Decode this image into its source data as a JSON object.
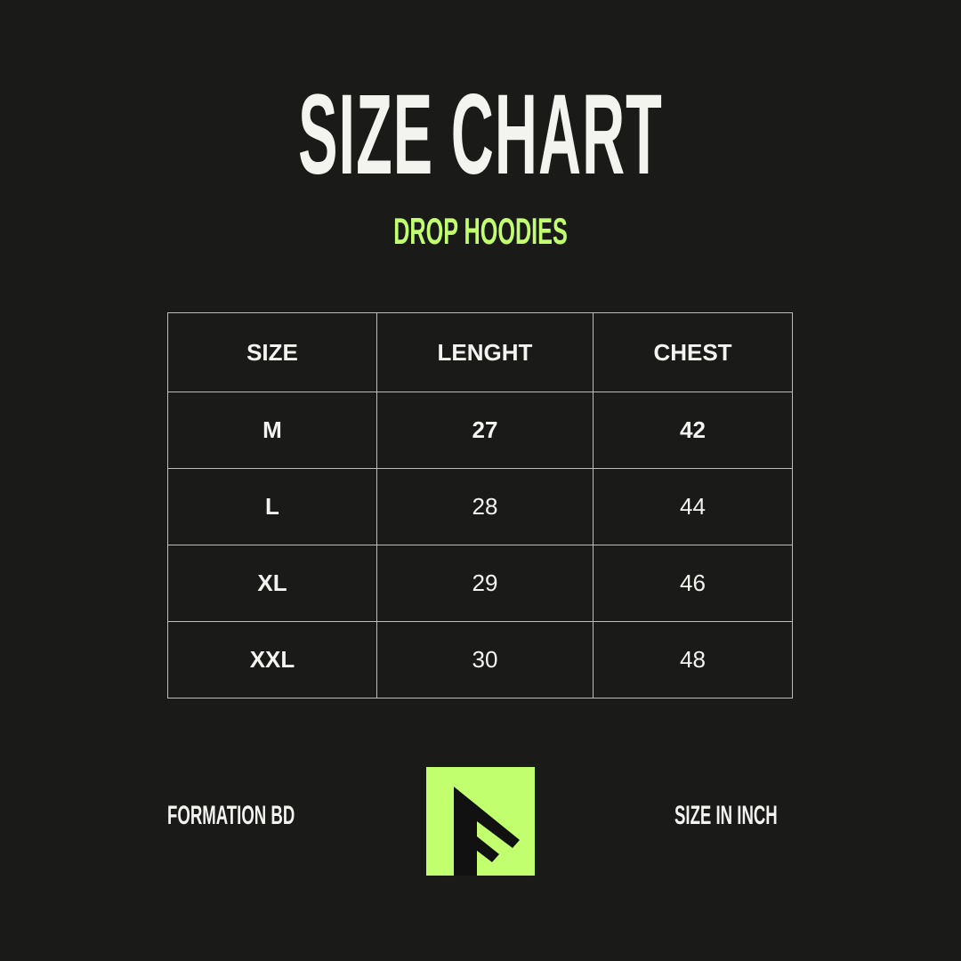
{
  "title": "SIZE CHART",
  "subtitle": "DROP HOODIES",
  "table": {
    "headers": [
      "SIZE",
      "LENGHT",
      "CHEST"
    ],
    "rows": [
      [
        "M",
        "27",
        "42"
      ],
      [
        "L",
        "28",
        "44"
      ],
      [
        "XL",
        "29",
        "46"
      ],
      [
        "XXL",
        "30",
        "48"
      ]
    ]
  },
  "footer": {
    "brand": "FORMATION BD",
    "unit_note": "SIZE IN INCH",
    "logo_letter": "F"
  },
  "colors": {
    "background": "#1a1a19",
    "accent": "#c2ff6e",
    "text": "#f3f3ef"
  }
}
